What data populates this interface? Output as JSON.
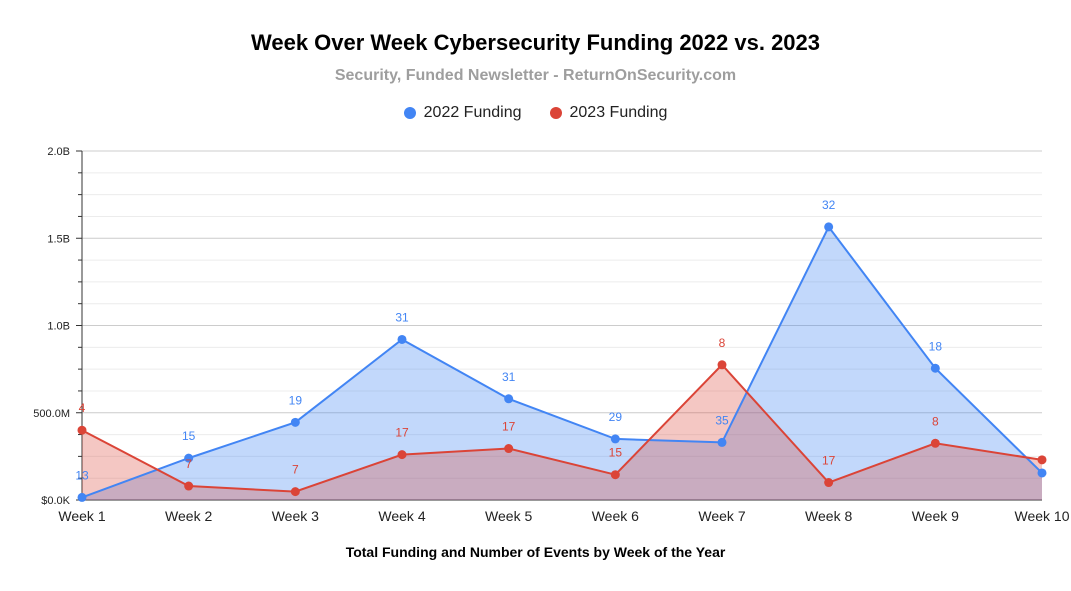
{
  "chart_data": {
    "type": "area",
    "title": "Week Over Week Cybersecurity Funding 2022 vs. 2023",
    "subtitle": "Security, Funded Newsletter - ReturnOnSecurity.com",
    "xlabel": "Total Funding and Number of Events by Week of the Year",
    "ylabel": "",
    "ylim": [
      0,
      2000000000
    ],
    "yticks": [
      {
        "value": 0,
        "label": "$0.0K"
      },
      {
        "value": 500000000,
        "label": "500.0M"
      },
      {
        "value": 1000000000,
        "label": "1.0B"
      },
      {
        "value": 1500000000,
        "label": "1.5B"
      },
      {
        "value": 2000000000,
        "label": "2.0B"
      }
    ],
    "grid": true,
    "legend_position": "top",
    "categories": [
      "Week 1",
      "Week 2",
      "Week 3",
      "Week 4",
      "Week 5",
      "Week 6",
      "Week 7",
      "Week 8",
      "Week 9",
      "Week 10"
    ],
    "series": [
      {
        "name": "2022 Funding",
        "color": "#4285f4",
        "fill": "rgba(66,133,244,0.32)",
        "values": [
          15000000,
          240000000,
          445000000,
          920000000,
          580000000,
          350000000,
          330000000,
          1565000000,
          755000000,
          155000000
        ],
        "labels": [
          "13",
          "15",
          "19",
          "31",
          "31",
          "29",
          "35",
          "32",
          "18",
          ""
        ]
      },
      {
        "name": "2023 Funding",
        "color": "#db4437",
        "fill": "rgba(219,68,55,0.30)",
        "values": [
          400000000,
          80000000,
          48000000,
          260000000,
          295000000,
          145000000,
          775000000,
          100000000,
          325000000,
          230000000
        ],
        "labels": [
          "4",
          "7",
          "7",
          "17",
          "17",
          "15",
          "8",
          "17",
          "8",
          ""
        ]
      }
    ]
  }
}
